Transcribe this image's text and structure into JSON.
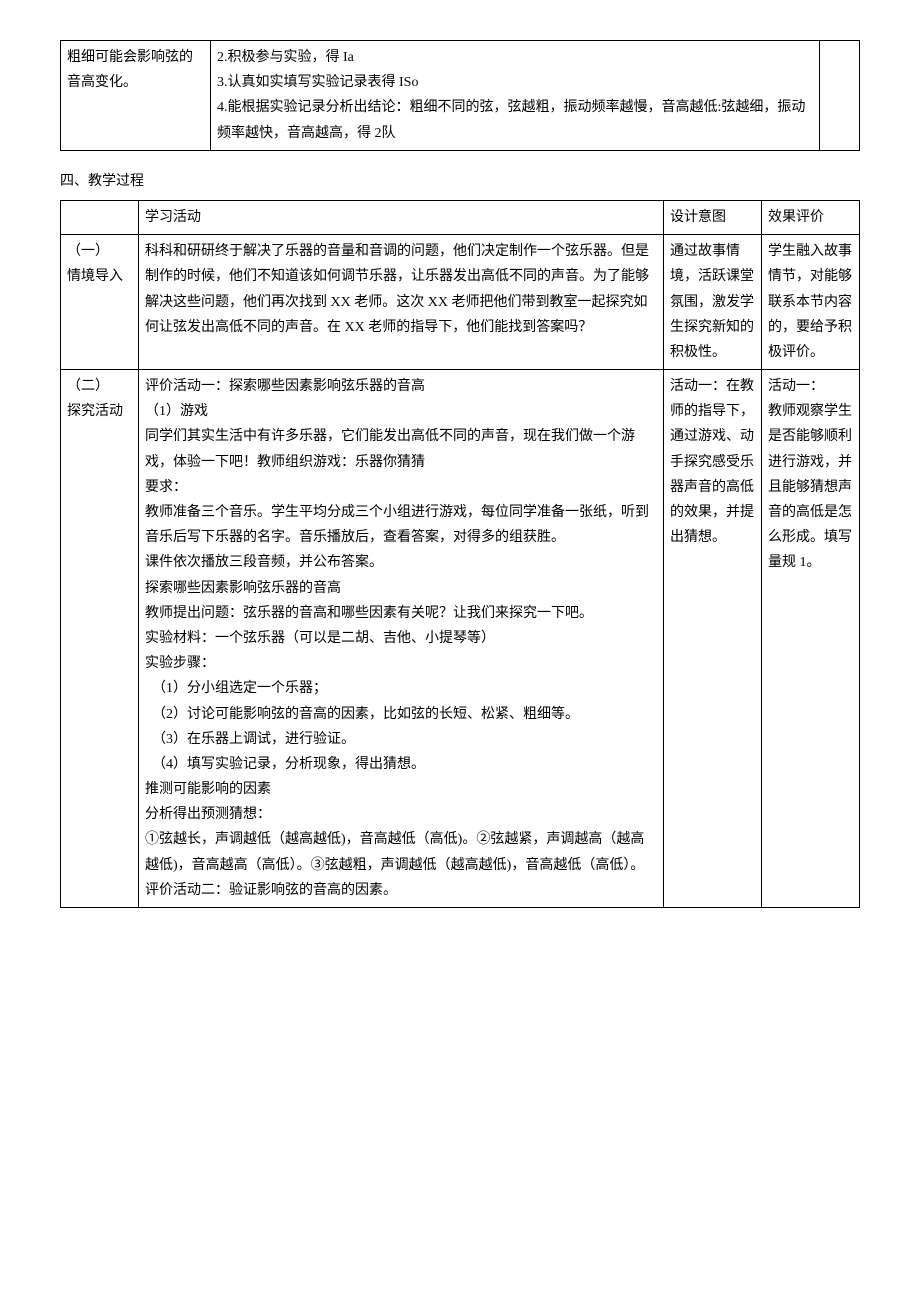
{
  "table1": {
    "col1": "粗细可能会影响弦的音高变化。",
    "col2": "2.积极参与实验，得 Ia\n3.认真如实填写实验记录表得 ISo\n4.能根据实验记录分析出结论：粗细不同的弦，弦越粗，振动频率越慢，音高越低:弦越细，振动频率越快，音高越高，得 2队",
    "col3": ""
  },
  "section4_title": "四、教学过程",
  "table2": {
    "header": {
      "c1": "",
      "c2": "学习活动",
      "c3": "设计意图",
      "c4": "效果评价"
    },
    "row1": {
      "c1": "（一）\n情境导入",
      "c2": "科科和研研终于解决了乐器的音量和音调的问题，他们决定制作一个弦乐器。但是制作的时候，他们不知道该如何调节乐器，让乐器发出高低不同的声音。为了能够解决这些问题，他们再次找到 XX 老师。这次 XX 老师把他们带到教室一起探究如何让弦发出高低不同的声音。在 XX 老师的指导下，他们能找到答案吗？",
      "c3": "通过故事情境，活跃课堂氛围，激发学生探究新知的积极性。",
      "c4": "学生融入故事情节，对能够联系本节内容的，要给予积极评价。"
    },
    "row2": {
      "c1": "（二）\n探究活动",
      "c2_lines": [
        "评价活动一：探索哪些因素影响弦乐器的音高",
        "（1）游戏",
        "同学们其实生活中有许多乐器，它们能发出高低不同的声音，现在我们做一个游戏，体验一下吧！教师组织游戏：乐器你猜猜",
        "要求：",
        "教师准备三个音乐。学生平均分成三个小组进行游戏，每位同学准备一张纸，听到音乐后写下乐器的名字。音乐播放后，查看答案，对得多的组获胜。",
        "课件依次播放三段音频，并公布答案。",
        "探索哪些因素影响弦乐器的音高",
        "教师提出问题：弦乐器的音高和哪些因素有关呢？让我们来探究一下吧。",
        "实验材料：一个弦乐器（可以是二胡、吉他、小提琴等）",
        "实验步骤：",
        "　（1）分小组选定一个乐器；",
        "　（2）讨论可能影响弦的音高的因素，比如弦的长短、松紧、粗细等。",
        "　（3）在乐器上调试，进行验证。",
        "　（4）填写实验记录，分析现象，得出猜想。",
        "推测可能影响的因素",
        "分析得出预测猜想：",
        "①弦越长，声调越低（越高越低)，音高越低（高低)。②弦越紧，声调越高（越高越低)，音高越高（高低）。③弦越粗，声调越低（越高越低)，音高越低（高低）。评价活动二：验证影响弦的音高的因素。"
      ],
      "c3": "活动一：在教师的指导下，通过游戏、动手探究感受乐器声音的高低的效果，并提出猜想。",
      "c4": "活动一：\n教师观察学生是否能够顺利进行游戏，并且能够猜想声音的高低是怎么形成。填写量规 1。"
    }
  }
}
